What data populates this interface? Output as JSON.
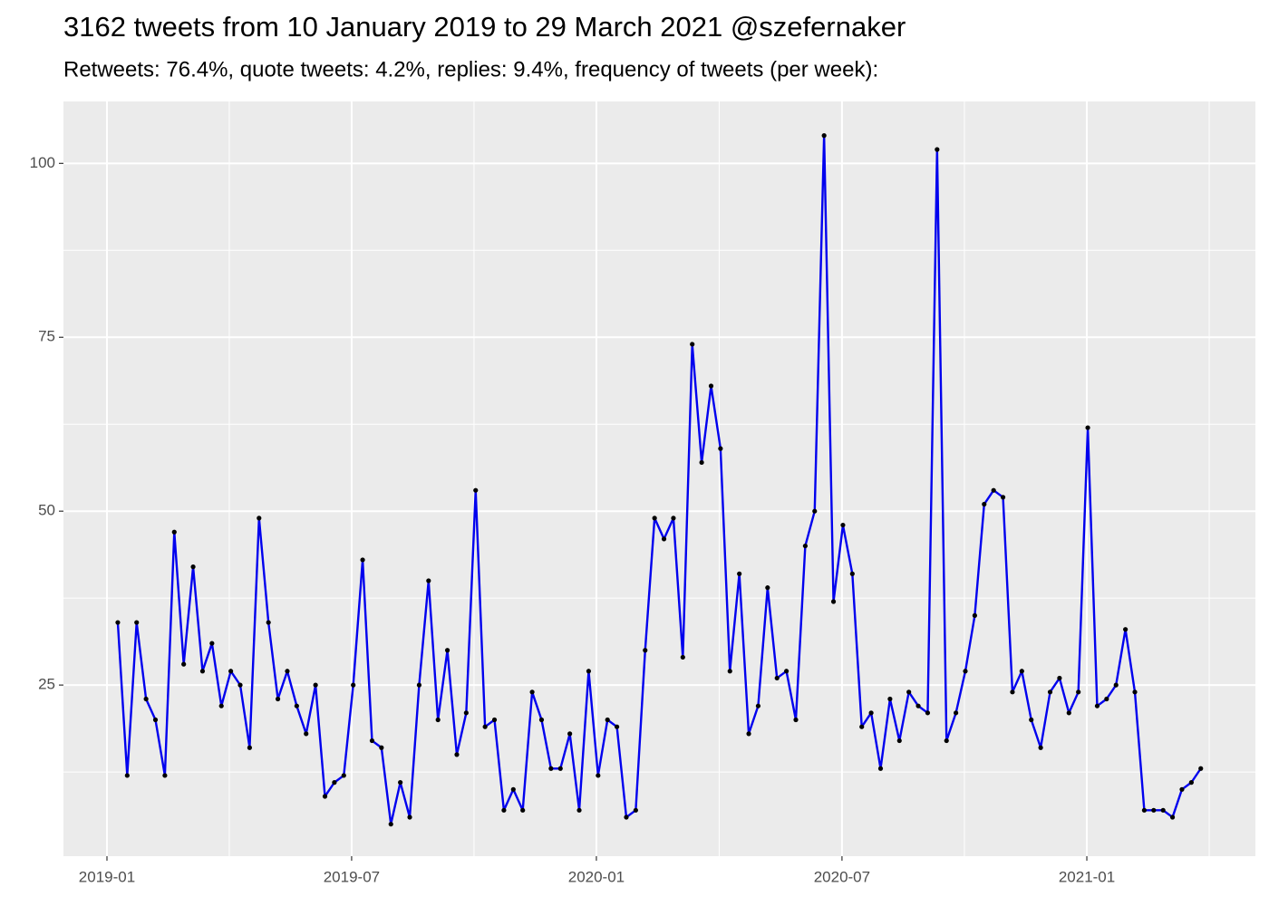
{
  "chart_data": {
    "type": "line",
    "title": "3162 tweets from 10 January 2019 to 29 March 2021 @szefernaker",
    "subtitle": "Retweets: 76.4%, quote tweets: 4.2%, replies: 9.4%, frequency of tweets (per week):",
    "x": [
      0,
      1,
      2,
      3,
      4,
      5,
      6,
      7,
      8,
      9,
      10,
      11,
      12,
      13,
      14,
      15,
      16,
      17,
      18,
      19,
      20,
      21,
      22,
      23,
      24,
      25,
      26,
      27,
      28,
      29,
      30,
      31,
      32,
      33,
      34,
      35,
      36,
      37,
      38,
      39,
      40,
      41,
      42,
      43,
      44,
      45,
      46,
      47,
      48,
      49,
      50,
      51,
      52,
      53,
      54,
      55,
      56,
      57,
      58,
      59,
      60,
      61,
      62,
      63,
      64,
      65,
      66,
      67,
      68,
      69,
      70,
      71,
      72,
      73,
      74,
      75,
      76,
      77,
      78,
      79,
      80,
      81,
      82,
      83,
      84,
      85,
      86,
      87,
      88,
      89,
      90,
      91,
      92,
      93,
      94,
      95,
      96,
      97,
      98,
      99,
      100,
      101,
      102,
      103,
      104,
      105,
      106,
      107,
      108,
      109,
      110,
      111,
      112,
      113,
      114,
      115
    ],
    "values": [
      34,
      12,
      34,
      23,
      20,
      12,
      47,
      28,
      42,
      27,
      31,
      22,
      27,
      25,
      16,
      49,
      34,
      23,
      27,
      22,
      18,
      25,
      9,
      11,
      12,
      25,
      43,
      17,
      16,
      5,
      11,
      6,
      25,
      40,
      20,
      30,
      15,
      21,
      53,
      19,
      20,
      7,
      10,
      7,
      24,
      20,
      13,
      13,
      18,
      7,
      27,
      12,
      20,
      19,
      6,
      7,
      30,
      49,
      46,
      49,
      29,
      74,
      57,
      68,
      59,
      27,
      41,
      18,
      22,
      39,
      26,
      27,
      20,
      45,
      50,
      104,
      37,
      48,
      41,
      19,
      21,
      13,
      23,
      17,
      24,
      22,
      21,
      102,
      17,
      21,
      27,
      35,
      51,
      53,
      52,
      24,
      27,
      20,
      16,
      24,
      26,
      21,
      24,
      62,
      22,
      23,
      25,
      33,
      24,
      7,
      7,
      7,
      6,
      10,
      11,
      13
    ],
    "color": "#0000ee",
    "point_color": "#000000",
    "xlim": [
      -5.77,
      120.8
    ],
    "xticks": [
      {
        "value": -1.15,
        "label": "2019-01"
      },
      {
        "value": 24.83,
        "label": "2019-07"
      },
      {
        "value": 50.82,
        "label": "2020-01"
      },
      {
        "value": 76.9,
        "label": "2020-07"
      },
      {
        "value": 102.9,
        "label": "2021-01"
      }
    ],
    "ylim": [
      0.4,
      108.9
    ],
    "yticks": [
      25,
      50,
      75,
      100
    ],
    "grid": true
  }
}
